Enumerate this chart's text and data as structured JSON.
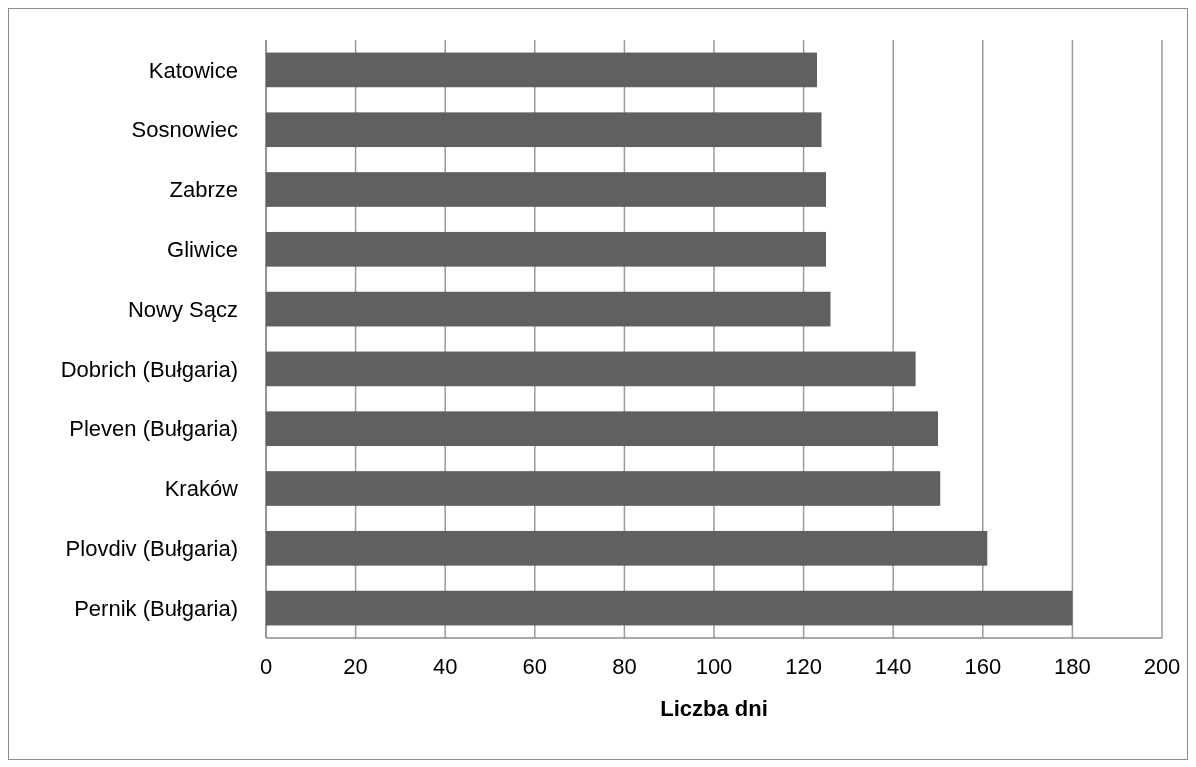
{
  "chart_data": {
    "type": "bar",
    "orientation": "horizontal",
    "xlabel": "Liczba dni",
    "categories": [
      "Katowice",
      "Sosnowiec",
      "Zabrze",
      "Gliwice",
      "Nowy Sącz",
      "Dobrich (Bułgaria)",
      "Pleven (Bułgaria)",
      "Kraków",
      "Plovdiv (Bułgaria)",
      "Pernik (Bułgaria)"
    ],
    "values": [
      123,
      124,
      125,
      125,
      126,
      145,
      150,
      150.5,
      161,
      180
    ],
    "color": "#606060",
    "xlim": [
      0,
      200
    ],
    "xticks": [
      0,
      20,
      40,
      60,
      80,
      100,
      120,
      140,
      160,
      180,
      200
    ],
    "grid": "x"
  }
}
